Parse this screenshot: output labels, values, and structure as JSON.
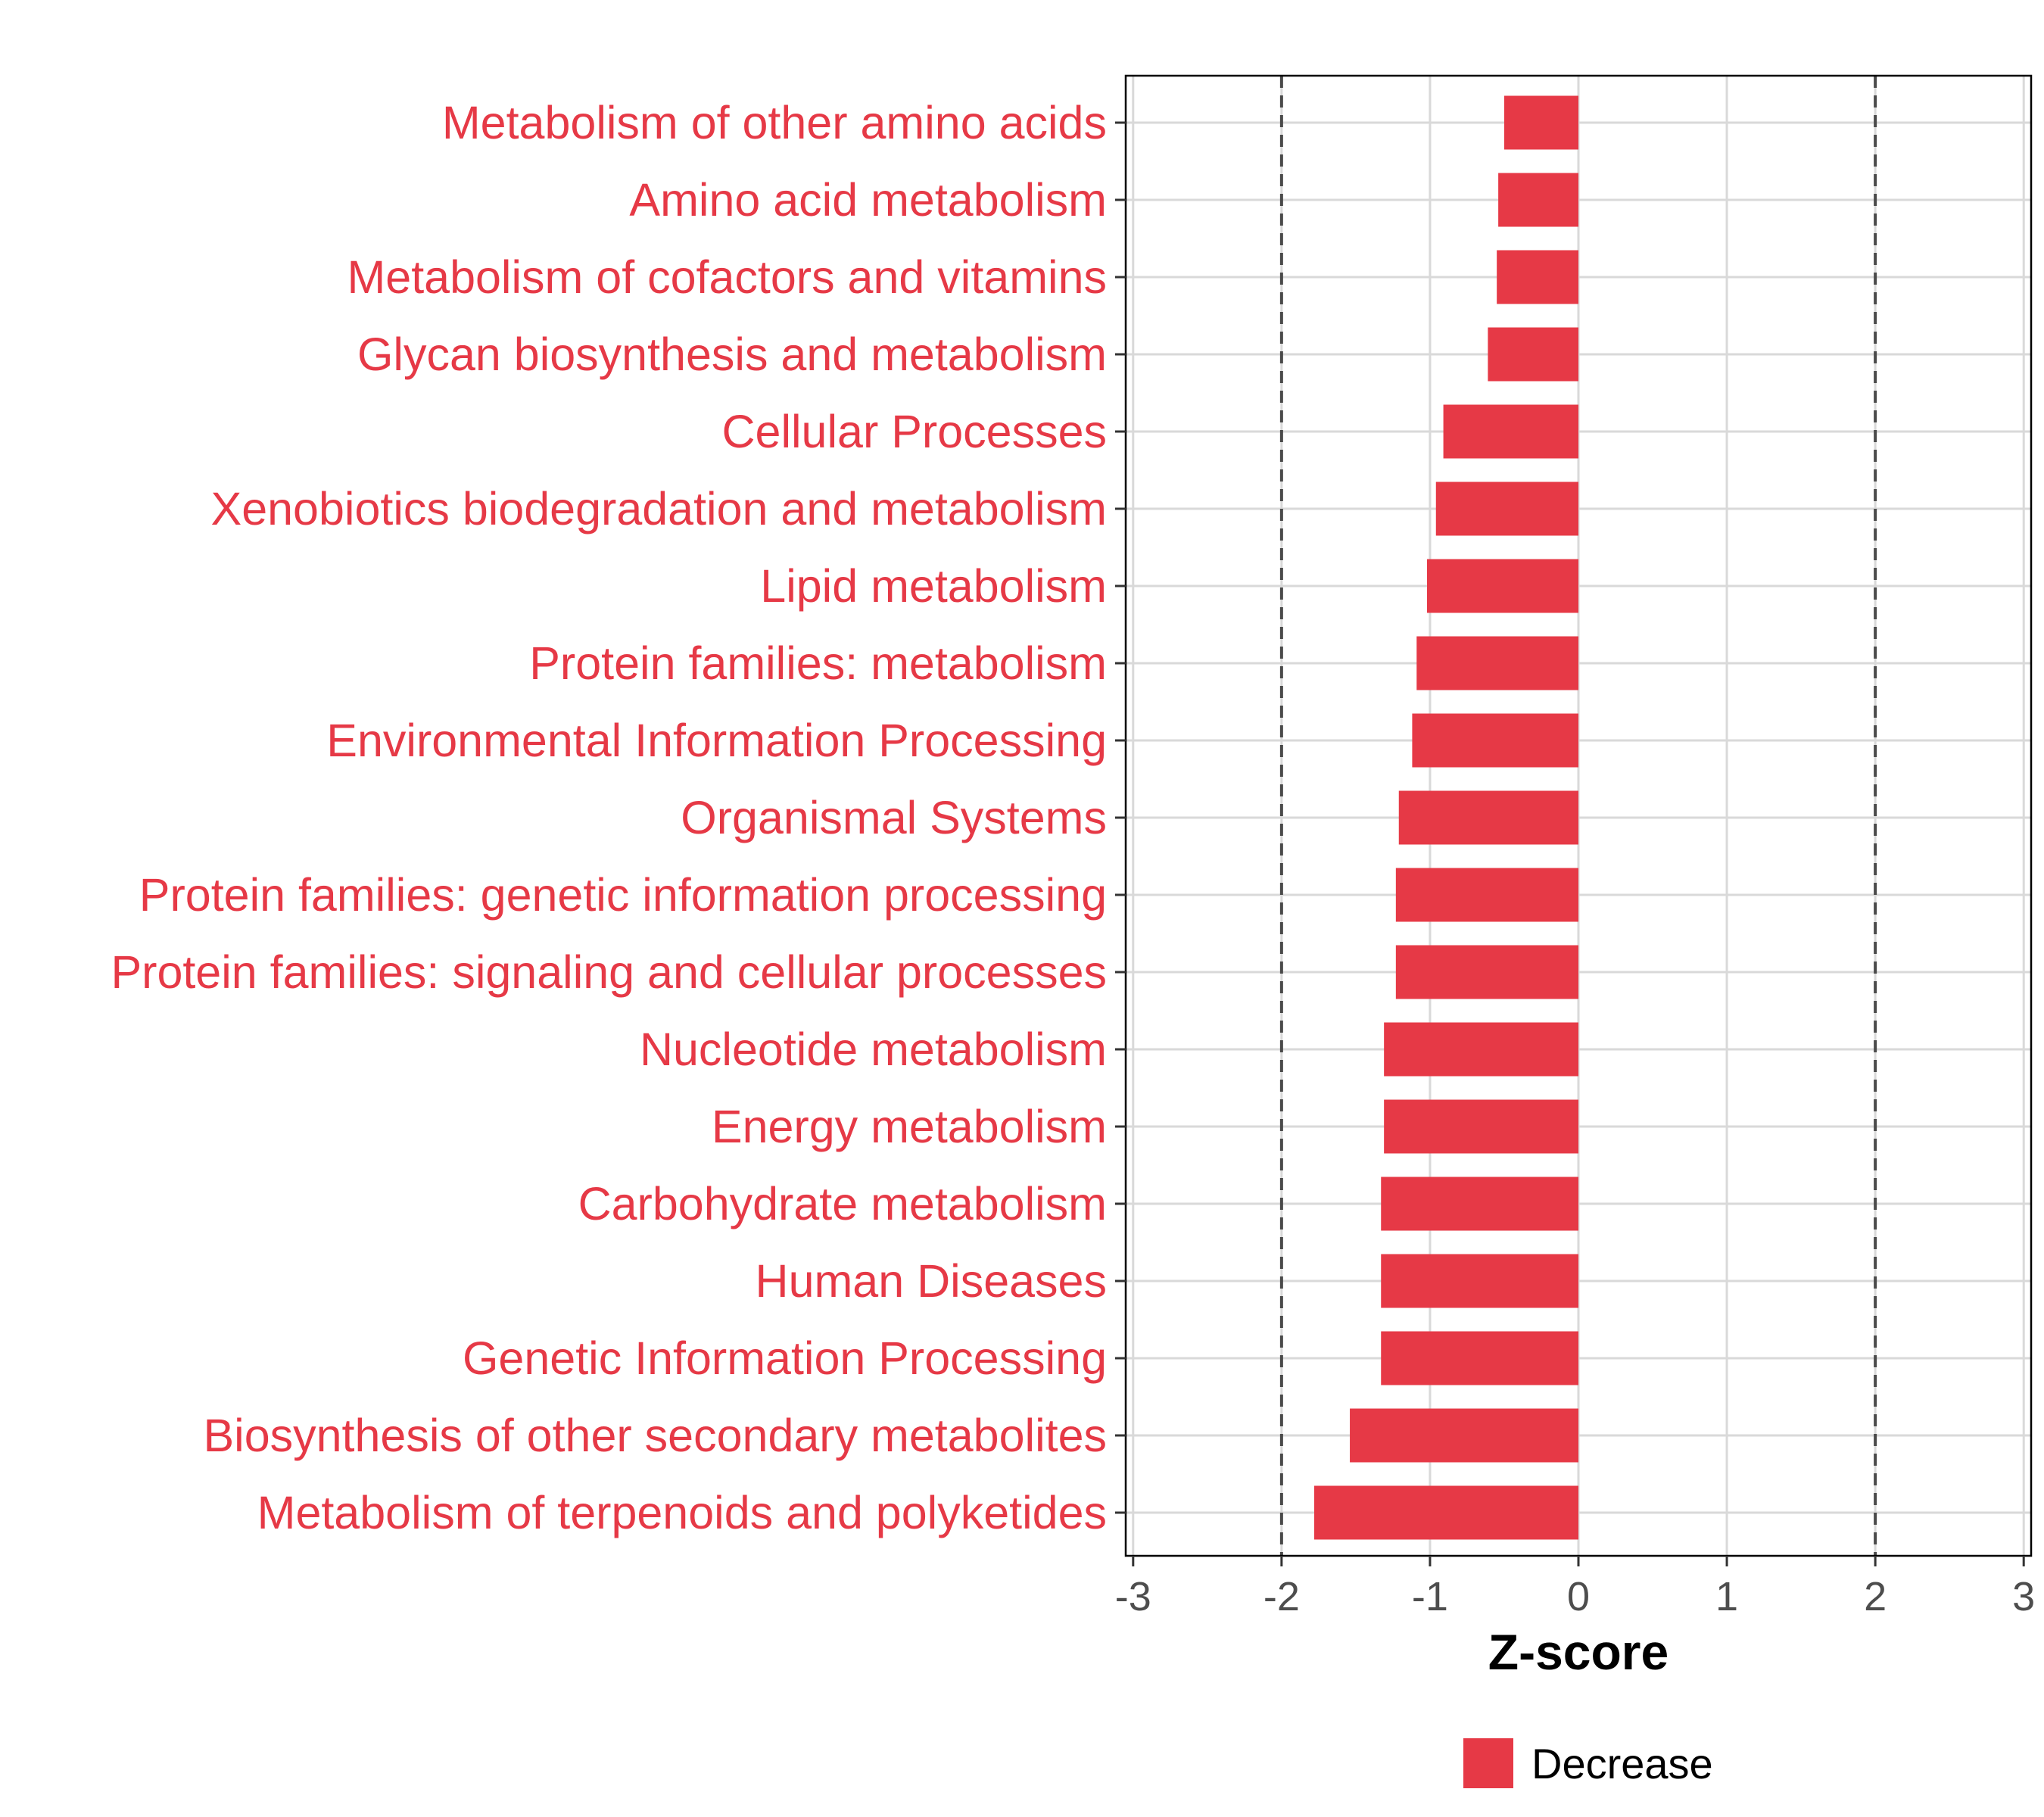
{
  "chart_data": {
    "type": "bar",
    "orientation": "horizontal",
    "categories": [
      "Metabolism of other amino acids",
      "Amino acid metabolism",
      "Metabolism of cofactors and vitamins",
      "Glycan biosynthesis and metabolism",
      "Cellular Processes",
      "Xenobiotics biodegradation and metabolism",
      "Lipid metabolism",
      "Protein families: metabolism",
      "Environmental Information Processing",
      "Organismal Systems",
      "Protein families: genetic information processing",
      "Protein families: signaling and cellular processes",
      "Nucleotide metabolism",
      "Energy metabolism",
      "Carbohydrate metabolism",
      "Human Diseases",
      "Genetic Information Processing",
      "Biosynthesis of other secondary metabolites",
      "Metabolism of terpenoids and polyketides"
    ],
    "series": [
      {
        "name": "Decrease",
        "color": "#e63946",
        "values": [
          -0.5,
          -0.54,
          -0.55,
          -0.61,
          -0.91,
          -0.96,
          -1.02,
          -1.09,
          -1.12,
          -1.21,
          -1.23,
          -1.23,
          -1.31,
          -1.31,
          -1.33,
          -1.33,
          -1.33,
          -1.54,
          -1.78
        ]
      }
    ],
    "xlabel": "Z-score",
    "ylabel": "",
    "xlim": [
      -3.05,
      3.05
    ],
    "xticks": [
      "-3",
      "-2",
      "-1",
      "0",
      "1",
      "2",
      "3"
    ],
    "threshold_lines": [
      -2,
      2
    ],
    "grid": true,
    "legend": {
      "position": "bottom",
      "entries": [
        "Decrease"
      ]
    },
    "label_color": "#e63946"
  }
}
